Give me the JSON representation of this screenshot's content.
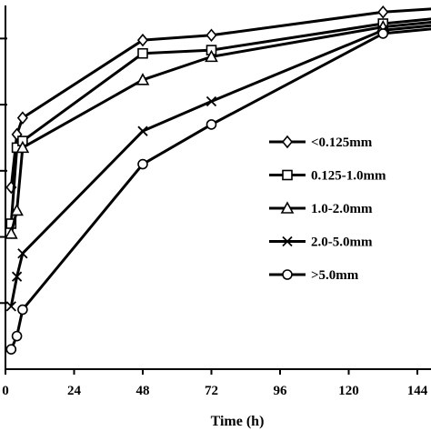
{
  "chart_data": {
    "type": "line",
    "title": "",
    "xlabel": "Time (h)",
    "ylabel": "",
    "xlim": [
      0,
      150
    ],
    "ylim": [
      0,
      1.1
    ],
    "xticks": [
      0,
      24,
      48,
      72,
      96,
      120,
      144
    ],
    "xtick_labels": [
      "0",
      "24",
      "48",
      "72",
      "96",
      "120",
      "144"
    ],
    "yticks": [
      0.2,
      0.4,
      0.6,
      0.8,
      1.0
    ],
    "grid": false,
    "legend_position": "right",
    "series": [
      {
        "name": "<0.125mm",
        "marker": "diamond",
        "x": [
          2,
          4,
          6,
          48,
          72,
          132,
          150
        ],
        "y": [
          0.55,
          0.71,
          0.76,
          0.995,
          1.01,
          1.08,
          1.09
        ]
      },
      {
        "name": "0.125-1.0mm",
        "marker": "square",
        "x": [
          2,
          4,
          6,
          48,
          72,
          132,
          150
        ],
        "y": [
          0.44,
          0.67,
          0.69,
          0.955,
          0.965,
          1.045,
          1.06
        ]
      },
      {
        "name": "1.0-2.0mm",
        "marker": "triangle",
        "x": [
          2,
          4,
          6,
          48,
          72,
          132,
          150
        ],
        "y": [
          0.41,
          0.48,
          0.67,
          0.875,
          0.945,
          1.035,
          1.05
        ]
      },
      {
        "name": "2.0-5.0mm",
        "marker": "cross",
        "x": [
          2,
          4,
          6,
          48,
          72,
          132,
          150
        ],
        "y": [
          0.19,
          0.28,
          0.35,
          0.72,
          0.81,
          1.025,
          1.04
        ]
      },
      {
        "name": ">5.0mm",
        "marker": "circle",
        "x": [
          2,
          4,
          6,
          48,
          72,
          132,
          150
        ],
        "y": [
          0.06,
          0.1,
          0.18,
          0.62,
          0.74,
          1.015,
          1.03
        ]
      }
    ]
  }
}
